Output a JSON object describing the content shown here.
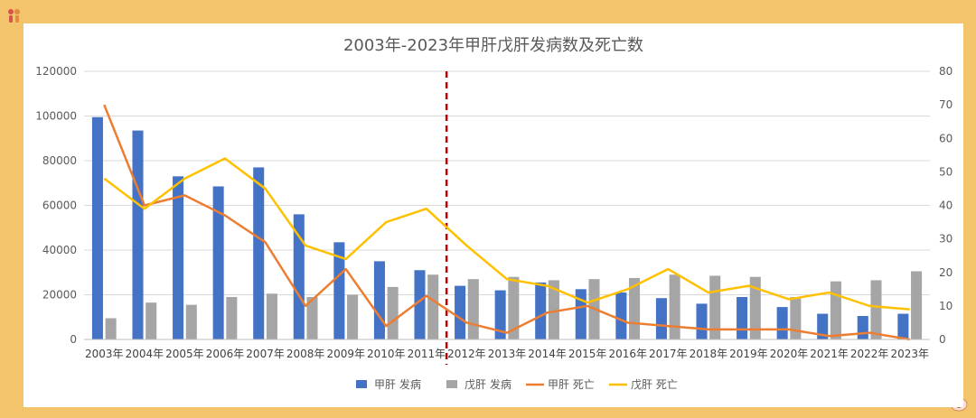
{
  "chart_data": {
    "type": "bar+line",
    "title": "2003年-2023年甲肝戊肝发病数及死亡数",
    "categories": [
      "2003年",
      "2004年",
      "2005年",
      "2006年",
      "2007年",
      "2008年",
      "2009年",
      "2010年",
      "2011年",
      "2012年",
      "2013年",
      "2014年",
      "2015年",
      "2016年",
      "2017年",
      "2018年",
      "2019年",
      "2020年",
      "2021年",
      "2022年",
      "2023年"
    ],
    "y_left": {
      "min": 0,
      "max": 120000,
      "ticks": [
        "0",
        "20000",
        "40000",
        "60000",
        "80000",
        "100000",
        "120000"
      ]
    },
    "y_right": {
      "min": 0,
      "max": 80,
      "ticks": [
        "0",
        "10",
        "20",
        "30",
        "40",
        "50",
        "60",
        "70",
        "80"
      ]
    },
    "series": [
      {
        "name": "甲肝 发病",
        "kind": "bar",
        "axis": "left",
        "color": "#4472c4",
        "values": [
          99500,
          93500,
          73000,
          68500,
          77000,
          56000,
          43500,
          35000,
          31000,
          24000,
          22000,
          25500,
          22500,
          21000,
          18500,
          16000,
          19000,
          14500,
          11500,
          10500,
          11500
        ]
      },
      {
        "name": "戊肝 发病",
        "kind": "bar",
        "axis": "left",
        "color": "#a5a5a5",
        "values": [
          9500,
          16500,
          15500,
          19000,
          20500,
          19000,
          20000,
          23500,
          29000,
          27000,
          28000,
          26500,
          27000,
          27500,
          29000,
          28500,
          28000,
          19000,
          26000,
          26500,
          30500
        ]
      },
      {
        "name": "甲肝 死亡",
        "kind": "line",
        "axis": "right",
        "color": "#ed7d31",
        "values": [
          70,
          40,
          43,
          37,
          29,
          10,
          21,
          4,
          13,
          5,
          2,
          8,
          10,
          5,
          4,
          3,
          3,
          3,
          1,
          2,
          0
        ]
      },
      {
        "name": "戊肝 死亡",
        "kind": "line",
        "axis": "right",
        "color": "#ffc000",
        "values": [
          48,
          39,
          48,
          54,
          45,
          28,
          24,
          35,
          39,
          28,
          18,
          16,
          11,
          15,
          21,
          14,
          16,
          12,
          14,
          10,
          9
        ]
      }
    ],
    "divider_after_category": "2011年",
    "divider_color": "#c00000",
    "legend_position": "bottom",
    "grid": "horizontal"
  }
}
